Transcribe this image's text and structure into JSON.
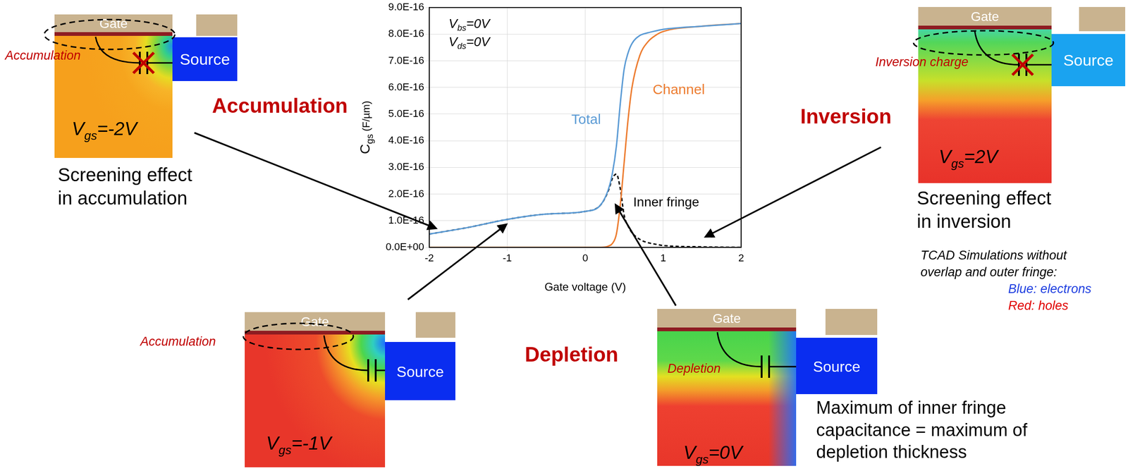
{
  "chart_data": {
    "type": "line",
    "x": [
      -2,
      -1.5,
      -1,
      -0.5,
      0,
      0.2,
      0.3,
      0.35,
      0.4,
      0.45,
      0.5,
      0.55,
      0.6,
      0.7,
      0.8,
      0.9,
      1.0,
      1.5,
      2
    ],
    "series": [
      {
        "name": "Total",
        "color": "#5b9bd5",
        "values": [
          5e-17,
          7.5e-17,
          1.05e-16,
          1.25e-16,
          1.35e-16,
          1.6e-16,
          2.2e-16,
          2.8e-16,
          3.8e-16,
          5.4e-16,
          6.7e-16,
          7.3e-16,
          7.65e-16,
          7.95e-16,
          8.05e-16,
          8.12e-16,
          8.18e-16,
          8.3e-16,
          8.4e-16
        ]
      },
      {
        "name": "Channel",
        "color": "#ed7d31",
        "values": [
          0,
          0,
          0,
          0,
          0,
          0,
          5e-18,
          1.5e-17,
          5e-17,
          1.6e-16,
          3.2e-16,
          4.8e-16,
          6e-16,
          7.2e-16,
          7.7e-16,
          7.95e-16,
          8.1e-16,
          8.3e-16,
          8.4e-16
        ]
      },
      {
        "name": "Inner fringe",
        "color": "#000000",
        "line_style": "dashed",
        "values": [
          5e-17,
          7.5e-17,
          1.05e-16,
          1.25e-16,
          1.35e-16,
          1.6e-16,
          2.15e-16,
          2.6e-16,
          2.75e-16,
          2.2e-16,
          1.2e-16,
          8e-17,
          5.5e-17,
          3e-17,
          1.8e-17,
          1.2e-17,
          7e-18,
          2e-18,
          0
        ]
      }
    ],
    "x_label": "Gate voltage (V)",
    "y_label": {
      "main": "C",
      "sub": "gs",
      "text": " (F/µm)"
    },
    "annotations": [
      {
        "main": "V",
        "sub": "bs",
        "text": "=0V"
      },
      {
        "main": "V",
        "sub": "ds",
        "text": "=0V"
      }
    ],
    "xlim": [
      -2,
      2
    ],
    "xticks": [
      -2,
      -1,
      0,
      1,
      2
    ],
    "ylim": [
      0,
      9e-16
    ],
    "yticks": [
      {
        "value": 0,
        "label": "0.0E+00"
      },
      {
        "value": 1e-16,
        "label": "1.0E-16"
      },
      {
        "value": 2e-16,
        "label": "2.0E-16"
      },
      {
        "value": 3e-16,
        "label": "3.0E-16"
      },
      {
        "value": 4e-16,
        "label": "4.0E-16"
      },
      {
        "value": 5e-16,
        "label": "5.0E-16"
      },
      {
        "value": 6e-16,
        "label": "6.0E-16"
      },
      {
        "value": 7e-16,
        "label": "7.0E-16"
      },
      {
        "value": 8e-16,
        "label": "8.0E-16"
      },
      {
        "value": 9e-16,
        "label": "9.0E-16"
      }
    ],
    "grid": true
  },
  "regions": [
    "Accumulation",
    "Depletion",
    "Inversion"
  ],
  "panels": [
    {
      "gate": "Gate",
      "source": "Source",
      "region": "Accumulation",
      "bias": {
        "main": "V",
        "sub": "gs",
        "text": "=-2V"
      },
      "caption": "Screening effect in accumulation"
    },
    {
      "gate": "Gate",
      "source": "Source",
      "region": "Accumulation",
      "bias": {
        "main": "V",
        "sub": "gs",
        "text": "=-1V"
      }
    },
    {
      "gate": "Gate",
      "source": "Source",
      "region": "Depletion",
      "bias": {
        "main": "V",
        "sub": "gs",
        "text": "=0V"
      },
      "caption": "Maximum of inner fringe capacitance = maximum of depletion thickness"
    },
    {
      "gate": "Gate",
      "source": "Source",
      "region": "Inversion charge",
      "bias": {
        "main": "V",
        "sub": "gs",
        "text": "=2V"
      },
      "caption": "Screening effect in inversion"
    }
  ],
  "note": {
    "title": "TCAD Simulations without overlap and outer fringe:",
    "items": [
      "Blue: electrons",
      "Red: holes"
    ]
  }
}
